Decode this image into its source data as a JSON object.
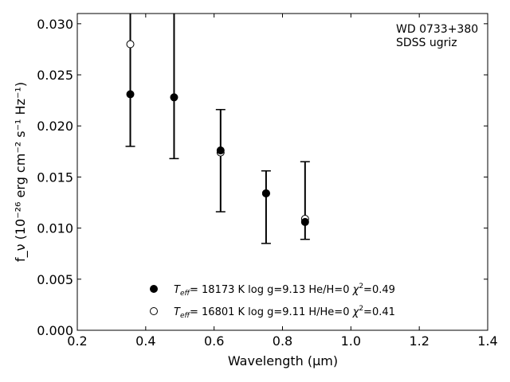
{
  "chart_data": {
    "type": "scatter",
    "xlabel": "Wavelength (μm)",
    "ylabel": "f_ν (10⁻²⁶ erg cm⁻² s⁻¹ Hz⁻¹)",
    "xlim": [
      0.2,
      1.4
    ],
    "ylim": [
      0.0,
      0.031
    ],
    "xticks": [
      "0.2",
      "0.4",
      "0.6",
      "0.8",
      "1.0",
      "1.2",
      "1.4"
    ],
    "yticks": [
      "0.000",
      "0.005",
      "0.010",
      "0.015",
      "0.020",
      "0.025",
      "0.030"
    ],
    "annotation": [
      "WD 0733+380",
      "SDSS ugriz"
    ],
    "observed": {
      "x": [
        0.355,
        0.483,
        0.619,
        0.752,
        0.866
      ],
      "y": [
        0.0231,
        0.0228,
        0.0176,
        0.0134,
        0.0106
      ],
      "yerr_low": [
        0.018,
        0.0168,
        0.0116,
        0.0085,
        0.0089
      ],
      "yerr_high": [
        0.0335,
        0.0335,
        0.0216,
        0.0156,
        0.0165
      ]
    },
    "model": {
      "x": [
        0.355,
        0.619,
        0.752,
        0.866
      ],
      "y": [
        0.028,
        0.0174,
        0.0134,
        0.0109
      ]
    },
    "legend": [
      {
        "marker": "filled",
        "teff": "18173",
        "logg": "9.13",
        "comp": "He/H=0",
        "chi2": "0.49"
      },
      {
        "marker": "open",
        "teff": "16801",
        "logg": "9.11",
        "comp": "H/He=0",
        "chi2": "0.41"
      }
    ],
    "legend_placement": "lower-center",
    "grid": false
  }
}
